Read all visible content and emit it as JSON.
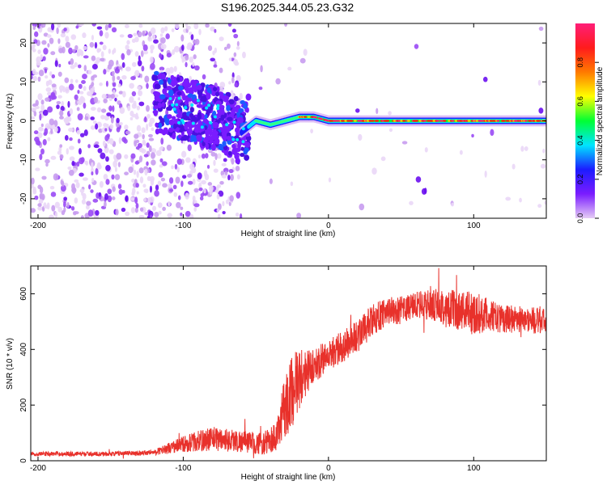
{
  "figure": {
    "title": "S196.2025.344.05.23.G32"
  },
  "chart_data": [
    {
      "type": "heatmap",
      "title": "S196.2025.344.05.23.G32",
      "xlabel": "Height of straight line (km)",
      "ylabel": "Frequency (Hz)",
      "xlim": [
        -205,
        150
      ],
      "ylim": [
        -25,
        25
      ],
      "xticks": [
        -200,
        -100,
        0,
        100
      ],
      "yticks": [
        -20,
        -10,
        0,
        10,
        20
      ],
      "colorbar": {
        "label": "Normalized spectral amplitude",
        "range": [
          0,
          1
        ],
        "ticks": [
          0.0,
          0.2,
          0.4,
          0.6,
          0.8
        ],
        "tick_labels": [
          "0.0",
          "0.2",
          "0.4",
          "0.6",
          "0.8"
        ],
        "colors": [
          "#e6ccf5",
          "#7a1cff",
          "#1c1cff",
          "#00e5ff",
          "#00ff33",
          "#ffff00",
          "#ff7a00",
          "#ff1c1c",
          "#ff1e78"
        ]
      },
      "ridge": {
        "description_points_x": [
          -205,
          -120,
          -100,
          -80,
          -60,
          -50,
          -40,
          -30,
          -20,
          -10,
          0,
          20,
          40,
          60,
          80,
          100,
          120,
          150
        ],
        "description_points_freq": [
          0,
          5,
          3,
          1,
          -3,
          0,
          -1,
          0,
          1,
          1,
          0,
          0,
          0,
          0,
          0,
          0,
          0,
          0
        ]
      }
    },
    {
      "type": "line",
      "xlabel": "Height of straight line (km)",
      "ylabel": "SNR (10 * v/v)",
      "xlim": [
        -205,
        150
      ],
      "ylim": [
        0,
        700
      ],
      "xticks": [
        -200,
        -100,
        0,
        100
      ],
      "yticks": [
        0,
        200,
        400,
        600
      ],
      "series": [
        {
          "name": "SNR",
          "color": "#e8312b",
          "trend_x": [
            -205,
            -150,
            -120,
            -100,
            -80,
            -60,
            -45,
            -35,
            -30,
            -25,
            -20,
            -15,
            -10,
            0,
            10,
            20,
            30,
            40,
            50,
            60,
            70,
            80,
            90,
            100,
            110,
            120,
            130,
            140,
            150
          ],
          "trend_y": [
            25,
            25,
            30,
            60,
            80,
            70,
            60,
            90,
            200,
            250,
            300,
            320,
            340,
            380,
            410,
            450,
            500,
            540,
            540,
            560,
            560,
            550,
            540,
            530,
            520,
            510,
            510,
            505,
            500
          ],
          "noise": [
            8,
            8,
            10,
            30,
            45,
            40,
            40,
            60,
            120,
            130,
            120,
            80,
            60,
            60,
            60,
            60,
            60,
            50,
            50,
            50,
            55,
            70,
            70,
            80,
            60,
            50,
            50,
            50,
            45
          ]
        }
      ]
    }
  ]
}
